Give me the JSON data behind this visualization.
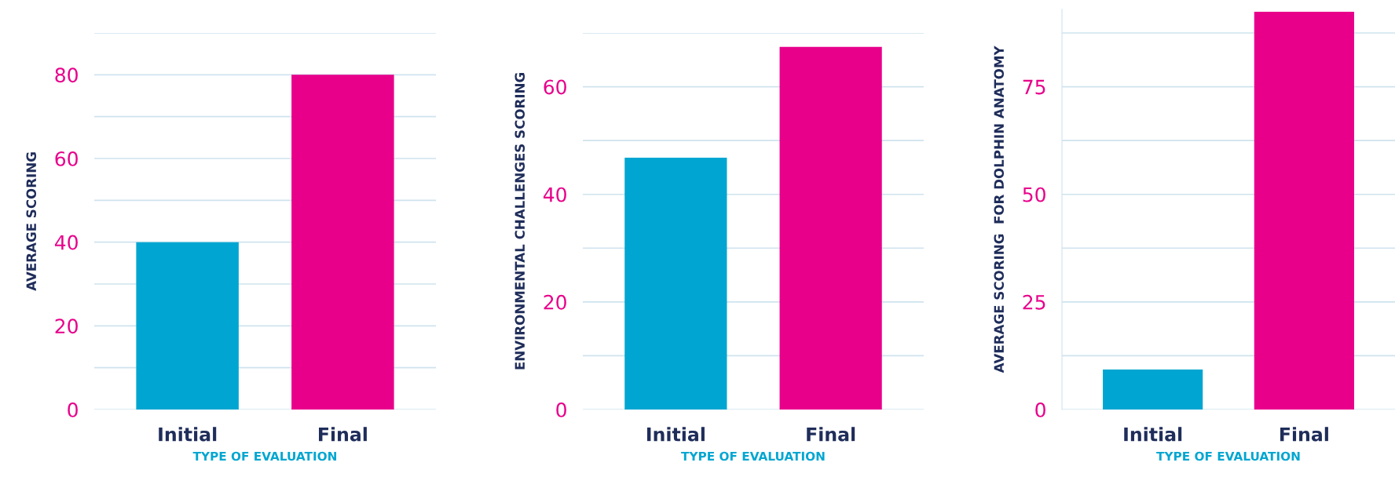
{
  "chart_data": [
    {
      "type": "bar",
      "ylabel": "AVERAGE SCORING",
      "xlabel": "TYPE OF EVALUATION",
      "categories": [
        "Initial",
        "Final"
      ],
      "values": [
        40,
        80
      ],
      "colors": [
        "#00a6d1",
        "#e8008b"
      ],
      "ylim": [
        0,
        90
      ],
      "yticks": [
        0,
        {
          "value": 10,
          "label": null
        },
        20,
        {
          "value": 30,
          "label": null
        },
        40,
        {
          "value": 50,
          "label": null
        },
        60,
        {
          "value": 70,
          "label": null
        },
        80,
        {
          "value": 90,
          "label": null
        }
      ],
      "grid": "y"
    },
    {
      "type": "bar",
      "ylabel": "ENVIRONMENTAL CHALLENGES SCORING",
      "xlabel": "TYPE OF EVALUATION",
      "categories": [
        "Initial",
        "Final"
      ],
      "values": [
        46.8,
        67.4
      ],
      "colors": [
        "#00a6d1",
        "#e8008b"
      ],
      "ylim": [
        0,
        70
      ],
      "yticks": [
        0,
        {
          "value": 10,
          "label": null
        },
        20,
        {
          "value": 30,
          "label": null
        },
        40,
        {
          "value": 50,
          "label": null
        },
        60,
        {
          "value": 70,
          "label": null
        }
      ],
      "grid": "y"
    },
    {
      "type": "bar",
      "ylabel": "AVERAGE SCORING  FOR DOLPHIN ANATOMY",
      "xlabel": "TYPE OF EVALUATION",
      "categories": [
        "Initial",
        "Final"
      ],
      "values": [
        9.3,
        92.4
      ],
      "colors": [
        "#00a6d1",
        "#e8008b"
      ],
      "ylim": [
        0,
        93
      ],
      "yticks": [
        0,
        {
          "value": 12.5,
          "label": null
        },
        25,
        {
          "value": 37.5,
          "label": null
        },
        50,
        {
          "value": 62.5,
          "label": null
        },
        75,
        {
          "value": 87.5,
          "label": null
        }
      ],
      "grid": "y"
    }
  ]
}
